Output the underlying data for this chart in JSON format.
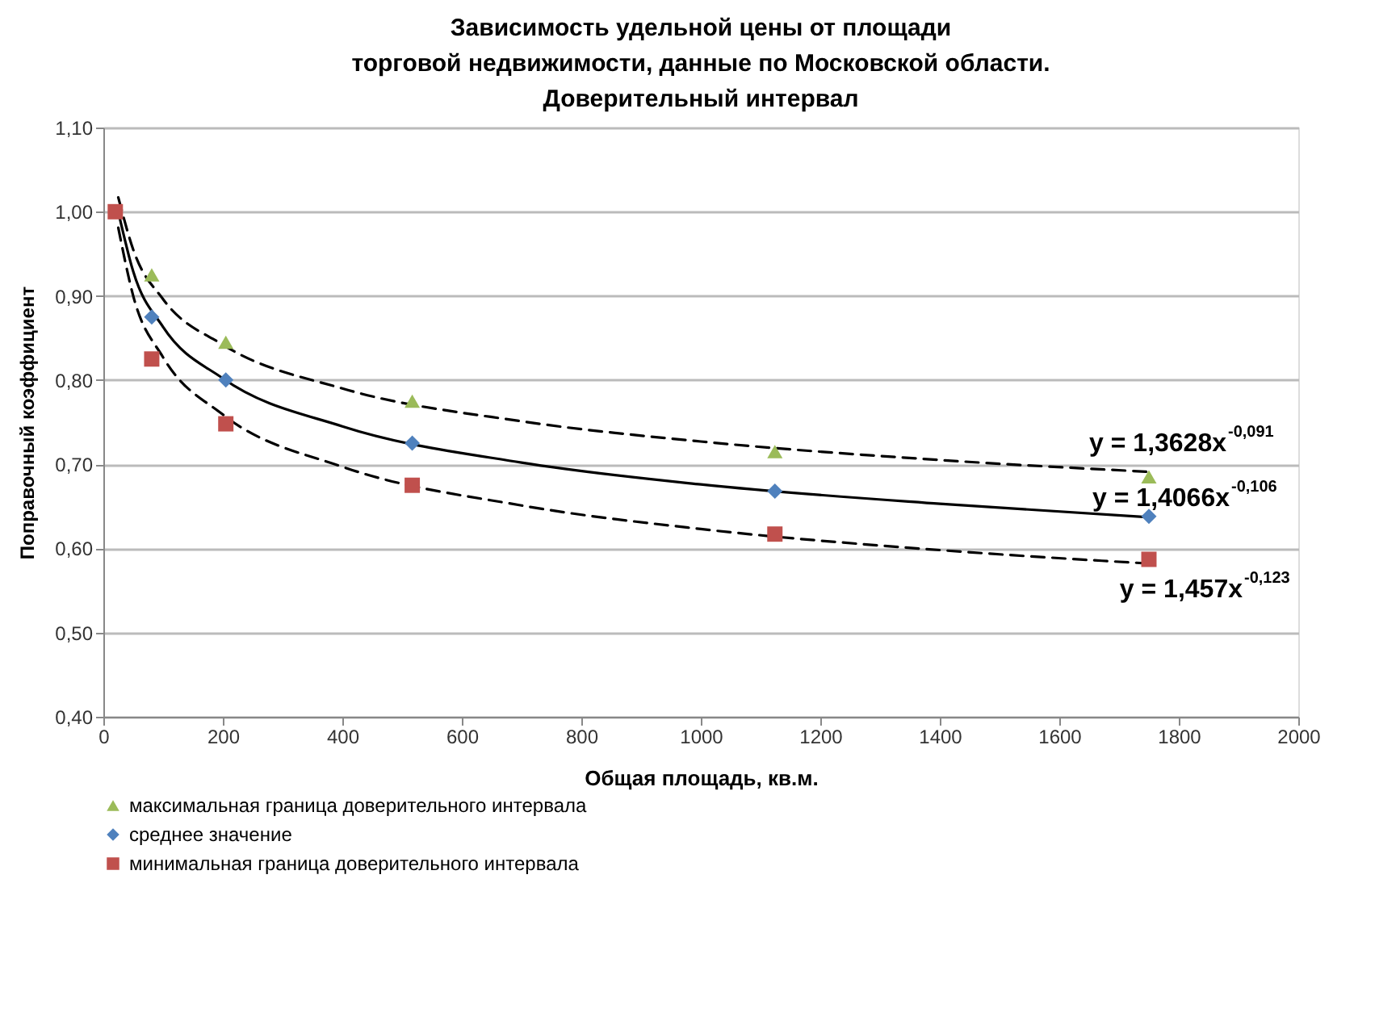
{
  "chart_data": {
    "type": "scatter",
    "title": "Зависимость удельной цены от площади\nторговой недвижимости, данные по Московской области.\nДоверительный интервал",
    "xlabel": "Общая площадь, кв.м.",
    "ylabel": "Поправочный коэффициент",
    "xlim": [
      0,
      2000
    ],
    "xticks": [
      0,
      200,
      400,
      600,
      800,
      1000,
      1200,
      1400,
      1600,
      1800,
      2000
    ],
    "ylim": [
      0.4,
      1.1
    ],
    "yticks": [
      {
        "value": 0.4,
        "label": "0,40"
      },
      {
        "value": 0.5,
        "label": "0,50"
      },
      {
        "value": 0.6,
        "label": "0,60"
      },
      {
        "value": 0.7,
        "label": "0,70"
      },
      {
        "value": 0.8,
        "label": "0,80"
      },
      {
        "value": 0.9,
        "label": "0,90"
      },
      {
        "value": 1.0,
        "label": "1,00"
      },
      {
        "value": 1.1,
        "label": "1,10"
      }
    ],
    "grid": "y",
    "legend": "bottom",
    "series": [
      {
        "name": "максимальная граница доверительного интервала",
        "marker": "triangle",
        "color": "#9bbb59",
        "x": [
          81,
          205,
          517,
          1124,
          1750
        ],
        "values": [
          0.925,
          0.845,
          0.775,
          0.715,
          0.685
        ]
      },
      {
        "name": "среднее значение",
        "marker": "diamond",
        "color": "#4f81bd",
        "x": [
          81,
          205,
          517,
          1124,
          1750
        ],
        "values": [
          0.875,
          0.8,
          0.725,
          0.668,
          0.638
        ]
      },
      {
        "name": "минимальная граница доверительного интервала",
        "marker": "square",
        "color": "#c0504d",
        "x": [
          20,
          81,
          205,
          517,
          1124,
          1750
        ],
        "values": [
          1.0,
          0.825,
          0.748,
          0.675,
          0.617,
          0.587
        ]
      },
      {
        "type": "line",
        "line_style": "dashed",
        "color": "#000000",
        "x": [
          25,
          50,
          100,
          200,
          400,
          700,
          1000,
          1400,
          1750
        ],
        "values": [
          1.017,
          0.955,
          0.896,
          0.842,
          0.79,
          0.751,
          0.727,
          0.705,
          0.691
        ]
      },
      {
        "type": "line",
        "line_style": "solid",
        "color": "#000000",
        "x": [
          25,
          50,
          100,
          200,
          400,
          700,
          1000,
          1400,
          1750
        ],
        "values": [
          1.0,
          0.929,
          0.863,
          0.802,
          0.745,
          0.702,
          0.676,
          0.653,
          0.637
        ]
      },
      {
        "type": "line",
        "line_style": "dashed",
        "color": "#000000",
        "x": [
          25,
          50,
          100,
          200,
          400,
          700,
          1000,
          1400,
          1750
        ],
        "values": [
          0.981,
          0.9,
          0.827,
          0.759,
          0.697,
          0.651,
          0.623,
          0.598,
          0.582
        ]
      }
    ],
    "annotations": [
      "y = 1,3628x$^{-0,091}$",
      "y = 1,4066x$^{-0,106}$",
      "y = 1,457x$^{-0,123}$"
    ]
  }
}
